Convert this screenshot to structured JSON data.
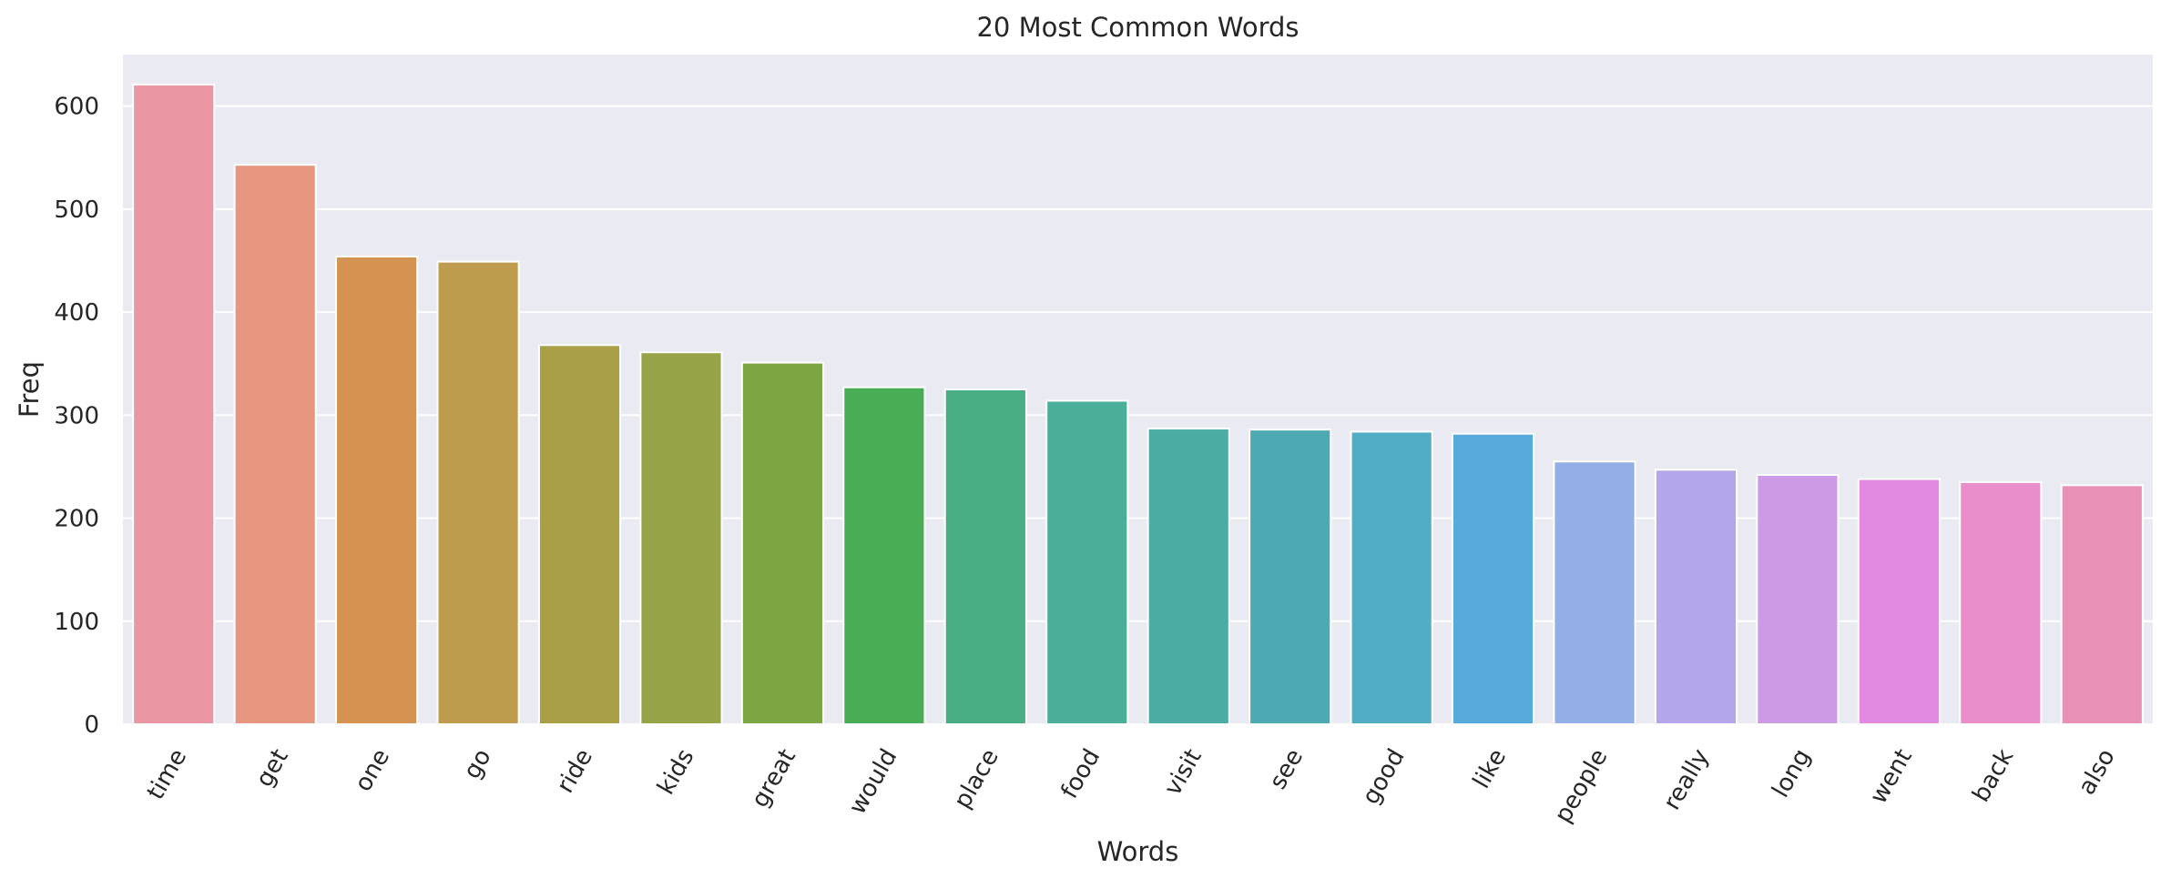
{
  "chart_data": {
    "type": "bar",
    "title": "20 Most Common Words",
    "xlabel": "Words",
    "ylabel": "Freq",
    "categories": [
      "time",
      "get",
      "one",
      "go",
      "ride",
      "kids",
      "great",
      "would",
      "place",
      "food",
      "visit",
      "see",
      "good",
      "like",
      "people",
      "really",
      "long",
      "went",
      "back",
      "also"
    ],
    "values": [
      621,
      543,
      454,
      449,
      368,
      361,
      351,
      327,
      325,
      314,
      287,
      286,
      284,
      282,
      255,
      247,
      242,
      238,
      235,
      232
    ],
    "ylim": [
      0,
      650
    ],
    "yticks": [
      0,
      100,
      200,
      300,
      400,
      500,
      600
    ],
    "grid": true,
    "legend": "none",
    "colors": [
      "#ea96a3",
      "#e7967f",
      "#d49351",
      "#bf9b4e",
      "#a89f46",
      "#97a347",
      "#7ca644",
      "#49ad56",
      "#49ae84",
      "#4bae98",
      "#4baba5",
      "#4daab2",
      "#51adc3",
      "#57abdc",
      "#94aee7",
      "#b5a6ec",
      "#cd9be6",
      "#e289e2",
      "#e98ecb",
      "#e990b6"
    ],
    "background": "#eaeaf2",
    "grid_color": "#ffffff"
  }
}
